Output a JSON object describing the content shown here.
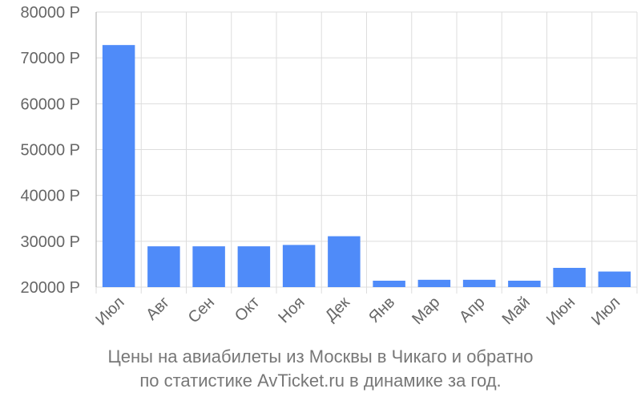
{
  "chart_data": {
    "type": "bar",
    "categories": [
      "Июл",
      "Авг",
      "Сен",
      "Окт",
      "Ноя",
      "Дек",
      "Янв",
      "Мар",
      "Апр",
      "Май",
      "Июн",
      "Июл"
    ],
    "values": [
      72800,
      28900,
      28900,
      28900,
      29200,
      31100,
      21400,
      21600,
      21600,
      21400,
      24200,
      23400
    ],
    "yticks": [
      "80000 Р",
      "70000 Р",
      "60000 Р",
      "50000 Р",
      "40000 Р",
      "30000 Р",
      "20000 Р"
    ],
    "ylim": [
      20000,
      80000
    ],
    "grid": true,
    "bar_color": "#4f8bf9",
    "grid_color": "#dddddd",
    "caption_line1": "Цены на авиабилеты из Москвы в Чикаго и обратно",
    "caption_line2": "по статистике AvTicket.ru в динамике за год."
  }
}
